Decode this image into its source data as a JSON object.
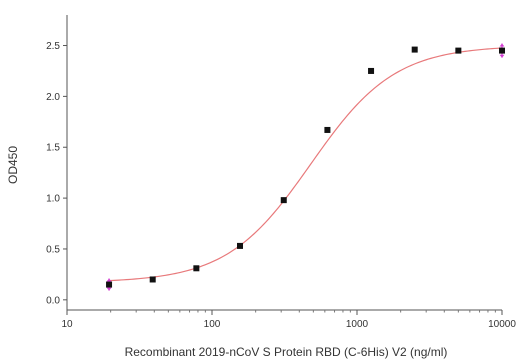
{
  "chart_data": {
    "type": "scatter",
    "xlabel": "Recombinant 2019-nCoV S Protein RBD (C-6His) V2 (ng/ml)",
    "ylabel": "OD450",
    "x_scale": "log",
    "xlim": [
      10,
      10000
    ],
    "ylim": [
      -0.1,
      2.8
    ],
    "x_ticks": [
      10,
      100,
      1000,
      10000
    ],
    "x_tick_labels": [
      "10",
      "100",
      "1000",
      "10000"
    ],
    "y_ticks": [
      0.0,
      0.5,
      1.0,
      1.5,
      2.0,
      2.5
    ],
    "y_tick_labels": [
      "0.0",
      "0.5",
      "1.0",
      "1.5",
      "2.0",
      "2.5"
    ],
    "grid": false,
    "series": [
      {
        "marker": "square",
        "color": "#111111",
        "x": [
          19.5,
          39,
          78,
          156,
          312.5,
          625,
          1250,
          2500,
          5000,
          10000
        ],
        "y": [
          0.15,
          0.2,
          0.31,
          0.53,
          0.98,
          1.67,
          2.25,
          2.46,
          2.45,
          2.45
        ],
        "error": [
          0.06,
          0,
          0,
          0,
          0,
          0,
          0,
          0,
          0,
          0.07
        ]
      }
    ],
    "fit_curve": {
      "model": "4PL",
      "color": "#e8797b",
      "bottom": 0.17,
      "top": 2.5,
      "ec50": 480,
      "hill": 1.5
    },
    "error_color": "#d23cd2"
  }
}
